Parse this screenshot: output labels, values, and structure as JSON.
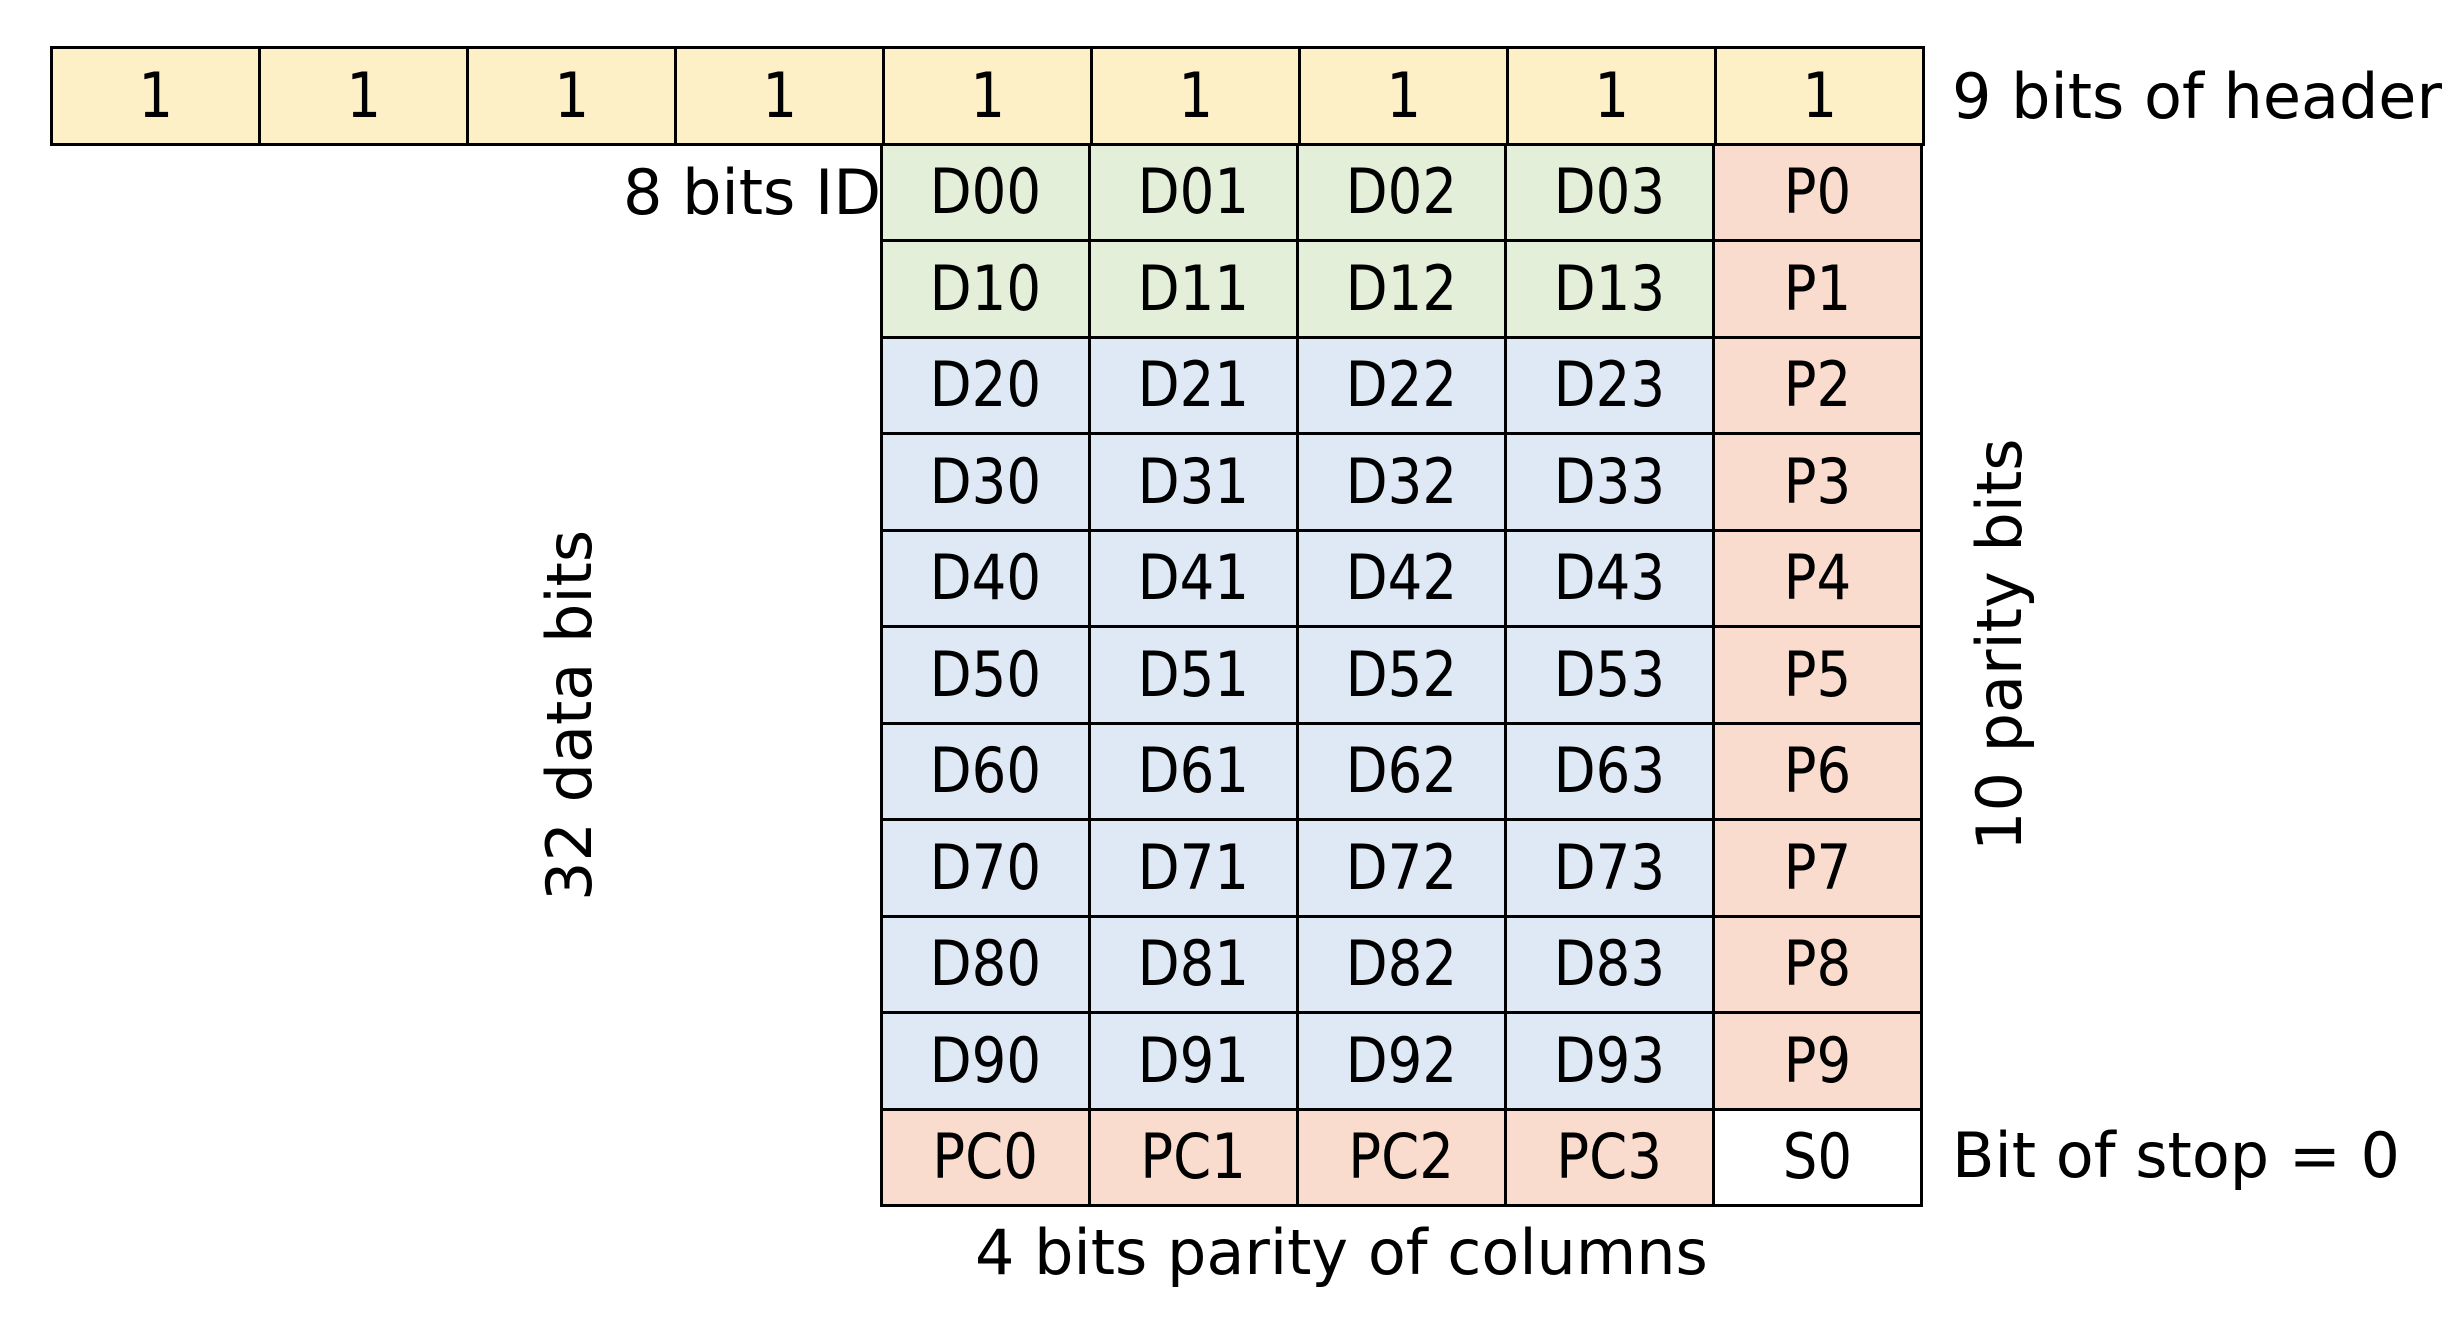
{
  "header_row": [
    "1",
    "1",
    "1",
    "1",
    "1",
    "1",
    "1",
    "1",
    "1"
  ],
  "grid_rows": [
    {
      "data": [
        "D00",
        "D01",
        "D02",
        "D03"
      ],
      "parity": "P0",
      "group": "id"
    },
    {
      "data": [
        "D10",
        "D11",
        "D12",
        "D13"
      ],
      "parity": "P1",
      "group": "id"
    },
    {
      "data": [
        "D20",
        "D21",
        "D22",
        "D23"
      ],
      "parity": "P2",
      "group": "data"
    },
    {
      "data": [
        "D30",
        "D31",
        "D32",
        "D33"
      ],
      "parity": "P3",
      "group": "data"
    },
    {
      "data": [
        "D40",
        "D41",
        "D42",
        "D43"
      ],
      "parity": "P4",
      "group": "data"
    },
    {
      "data": [
        "D50",
        "D51",
        "D52",
        "D53"
      ],
      "parity": "P5",
      "group": "data"
    },
    {
      "data": [
        "D60",
        "D61",
        "D62",
        "D63"
      ],
      "parity": "P6",
      "group": "data"
    },
    {
      "data": [
        "D70",
        "D71",
        "D72",
        "D73"
      ],
      "parity": "P7",
      "group": "data"
    },
    {
      "data": [
        "D80",
        "D81",
        "D82",
        "D83"
      ],
      "parity": "P8",
      "group": "data"
    },
    {
      "data": [
        "D90",
        "D91",
        "D92",
        "D93"
      ],
      "parity": "P9",
      "group": "data"
    }
  ],
  "column_parity_row": [
    "PC0",
    "PC1",
    "PC2",
    "PC3"
  ],
  "stop_bit": "S0",
  "labels": {
    "header": "9 bits of header",
    "id": "8 bits ID",
    "data_bits": "32 data bits",
    "parity_bits": "10 parity bits",
    "stop": "Bit of stop = 0",
    "column_parity": "4 bits parity of columns"
  },
  "colors": {
    "header_fill": "#fdefc6",
    "id_fill": "#e3efd9",
    "data_fill": "#dee9f5",
    "parity_fill": "#f9dccd",
    "stop_fill": "#ffffff",
    "border": "#000000"
  }
}
